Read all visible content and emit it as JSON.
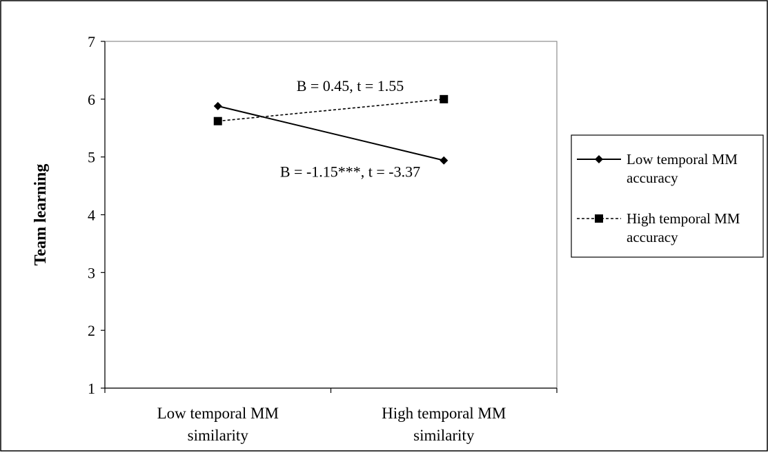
{
  "chart_data": {
    "type": "line",
    "title": "",
    "xlabel": "",
    "ylabel": "Team learning",
    "ylim": [
      1,
      7
    ],
    "yticks": [
      1,
      2,
      3,
      4,
      5,
      6,
      7
    ],
    "categories": [
      [
        "Low temporal MM",
        "similarity"
      ],
      [
        "High temporal MM",
        "similarity"
      ]
    ],
    "series": [
      {
        "name": "Low temporal MM accuracy",
        "legend_lines": [
          "Low temporal MM",
          "accuracy"
        ],
        "values": [
          5.88,
          4.94
        ],
        "marker": "diamond",
        "line_style": "solid",
        "color": "#000000"
      },
      {
        "name": "High temporal MM accuracy",
        "legend_lines": [
          "High temporal MM",
          "accuracy"
        ],
        "values": [
          5.62,
          6.0
        ],
        "marker": "square",
        "line_style": "dashed",
        "color": "#000000"
      }
    ],
    "annotations": [
      {
        "text": "B = 0.45, t = 1.55",
        "series": 1
      },
      {
        "text": "B = -1.15***, t = -3.37",
        "series": 0
      }
    ],
    "grid": false,
    "legend_position": "right"
  }
}
